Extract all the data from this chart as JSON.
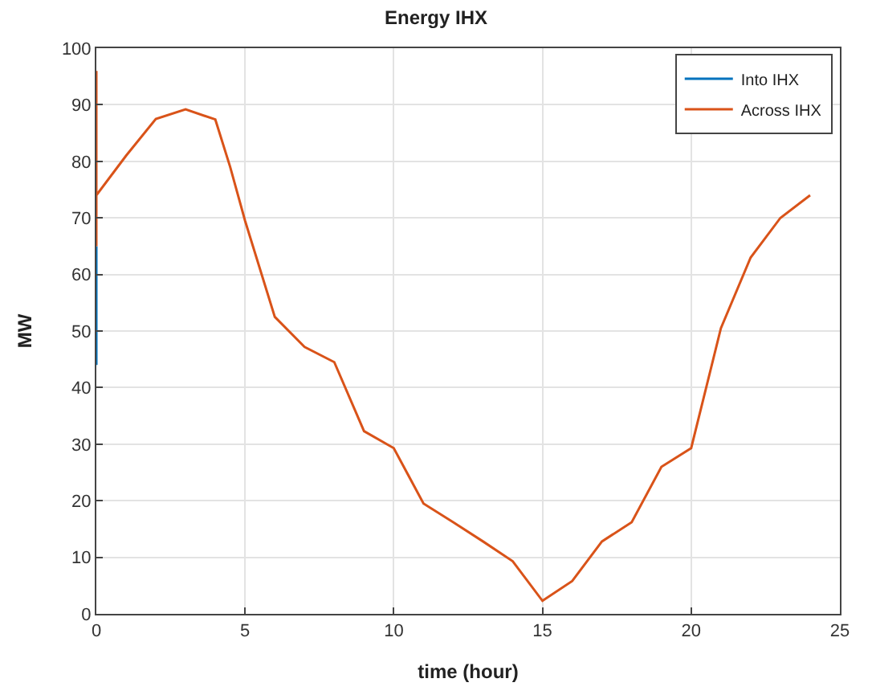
{
  "chart_data": {
    "type": "line",
    "title": "Energy IHX",
    "xlabel": "time (hour)",
    "ylabel": "MW",
    "xlim": [
      0,
      25
    ],
    "xticks": [
      0,
      5,
      10,
      15,
      20,
      25
    ],
    "ylim": [
      0,
      100
    ],
    "yticks": [
      0,
      10,
      20,
      30,
      40,
      50,
      60,
      70,
      80,
      90,
      100
    ],
    "grid": true,
    "legend": "top right",
    "line_style": "solid",
    "marker": "none",
    "series": [
      {
        "name": "Into IHX",
        "color": "#0072bd",
        "x": [
          0,
          0
        ],
        "values": [
          44,
          65
        ]
      },
      {
        "name": "Across IHX",
        "color": "#d95319",
        "x": [
          0,
          0,
          0,
          1,
          2,
          3,
          4,
          4.5,
          5,
          6,
          7,
          8,
          9,
          10,
          11,
          12,
          13,
          14,
          15,
          16,
          17,
          18,
          19,
          20,
          21,
          22,
          23,
          24
        ],
        "values": [
          65,
          96,
          74,
          81,
          87.5,
          89.2,
          87.4,
          79,
          69.5,
          52.5,
          47.2,
          44.5,
          32.3,
          29.3,
          19.5,
          16.2,
          12.8,
          9.3,
          2.3,
          5.8,
          12.8,
          16.2,
          26,
          29.3,
          50.5,
          63,
          70,
          74
        ]
      }
    ]
  }
}
